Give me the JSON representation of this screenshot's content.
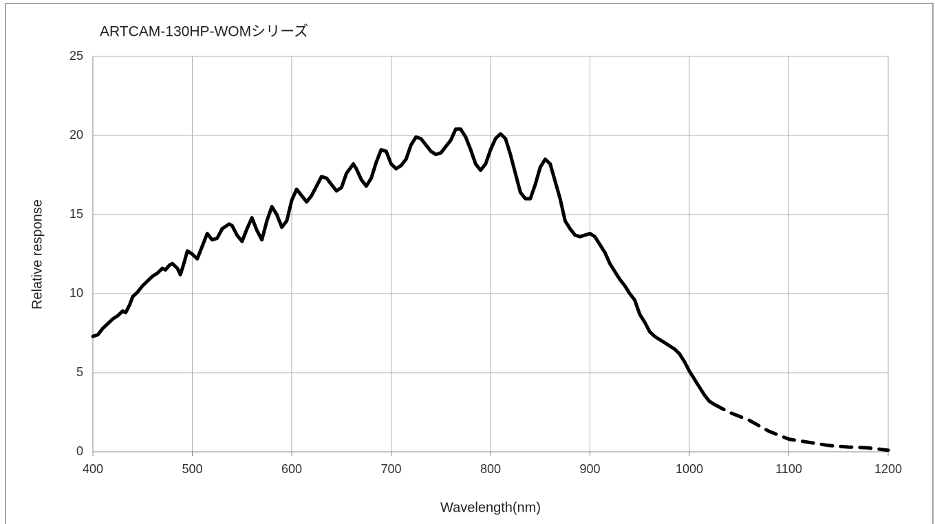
{
  "chart_data": {
    "type": "line",
    "title": "ARTCAM-130HP-WOMシリーズ",
    "x_label": "Wavelength(nm)",
    "y_label": "Relative response",
    "xlim": [
      400,
      1200
    ],
    "xticks": [
      400,
      500,
      600,
      700,
      800,
      900,
      1000,
      1100,
      1200
    ],
    "ylim": [
      0,
      25
    ],
    "yticks": [
      0,
      5,
      10,
      15,
      20,
      25
    ],
    "grid": true,
    "series": [
      {
        "color": "#000000",
        "dashed": false,
        "x": [
          400,
          405,
          410,
          415,
          420,
          425,
          430,
          433,
          437,
          440,
          445,
          450,
          455,
          460,
          465,
          470,
          473,
          477,
          480,
          485,
          488,
          492,
          495,
          500,
          505,
          510,
          515,
          520,
          525,
          530,
          537,
          540,
          545,
          550,
          555,
          560,
          565,
          570,
          575,
          580,
          585,
          590,
          595,
          600,
          605,
          610,
          615,
          620,
          625,
          630,
          635,
          640,
          645,
          650,
          655,
          662,
          665,
          670,
          675,
          680,
          685,
          690,
          695,
          700,
          705,
          710,
          715,
          720,
          725,
          730,
          735,
          740,
          745,
          750,
          755,
          760,
          765,
          770,
          775,
          780,
          785,
          790,
          795,
          800,
          805,
          810,
          815,
          820,
          825,
          830,
          835,
          840,
          845,
          850,
          855,
          860,
          865,
          870,
          875,
          880,
          885,
          890,
          895,
          900,
          905,
          910,
          915,
          920,
          925,
          930,
          935,
          940,
          945,
          950,
          955,
          960,
          965,
          970,
          975,
          980,
          985,
          990,
          995,
          1000,
          1005,
          1010,
          1015,
          1020,
          1025
        ],
        "values": [
          7.3,
          7.4,
          7.8,
          8.1,
          8.4,
          8.6,
          8.9,
          8.8,
          9.3,
          9.8,
          10.1,
          10.5,
          10.8,
          11.1,
          11.3,
          11.6,
          11.5,
          11.8,
          11.9,
          11.6,
          11.2,
          12.0,
          12.7,
          12.5,
          12.2,
          13.0,
          13.8,
          13.4,
          13.5,
          14.1,
          14.4,
          14.3,
          13.7,
          13.3,
          14.1,
          14.8,
          14.0,
          13.4,
          14.6,
          15.5,
          15.0,
          14.2,
          14.6,
          15.9,
          16.6,
          16.2,
          15.8,
          16.2,
          16.8,
          17.4,
          17.3,
          16.9,
          16.5,
          16.7,
          17.6,
          18.2,
          17.9,
          17.2,
          16.8,
          17.3,
          18.3,
          19.1,
          19.0,
          18.2,
          17.9,
          18.1,
          18.5,
          19.4,
          19.9,
          19.8,
          19.4,
          19.0,
          18.8,
          18.9,
          19.3,
          19.7,
          20.4,
          20.4,
          19.9,
          19.1,
          18.2,
          17.8,
          18.2,
          19.1,
          19.8,
          20.1,
          19.8,
          18.8,
          17.6,
          16.4,
          16.0,
          16.0,
          16.9,
          18.0,
          18.5,
          18.2,
          17.1,
          16.0,
          14.6,
          14.1,
          13.7,
          13.6,
          13.7,
          13.8,
          13.6,
          13.1,
          12.6,
          11.9,
          11.4,
          10.9,
          10.5,
          10.0,
          9.6,
          8.7,
          8.2,
          7.6,
          7.3,
          7.1,
          6.9,
          6.7,
          6.5,
          6.2,
          5.7,
          5.1,
          4.6,
          4.1,
          3.6,
          3.2,
          3.0
        ]
      },
      {
        "color": "#000000",
        "dashed": true,
        "x": [
          1025,
          1040,
          1060,
          1080,
          1100,
          1120,
          1140,
          1160,
          1180,
          1200
        ],
        "values": [
          3.0,
          2.5,
          2.0,
          1.3,
          0.8,
          0.6,
          0.4,
          0.3,
          0.25,
          0.1
        ]
      }
    ]
  }
}
